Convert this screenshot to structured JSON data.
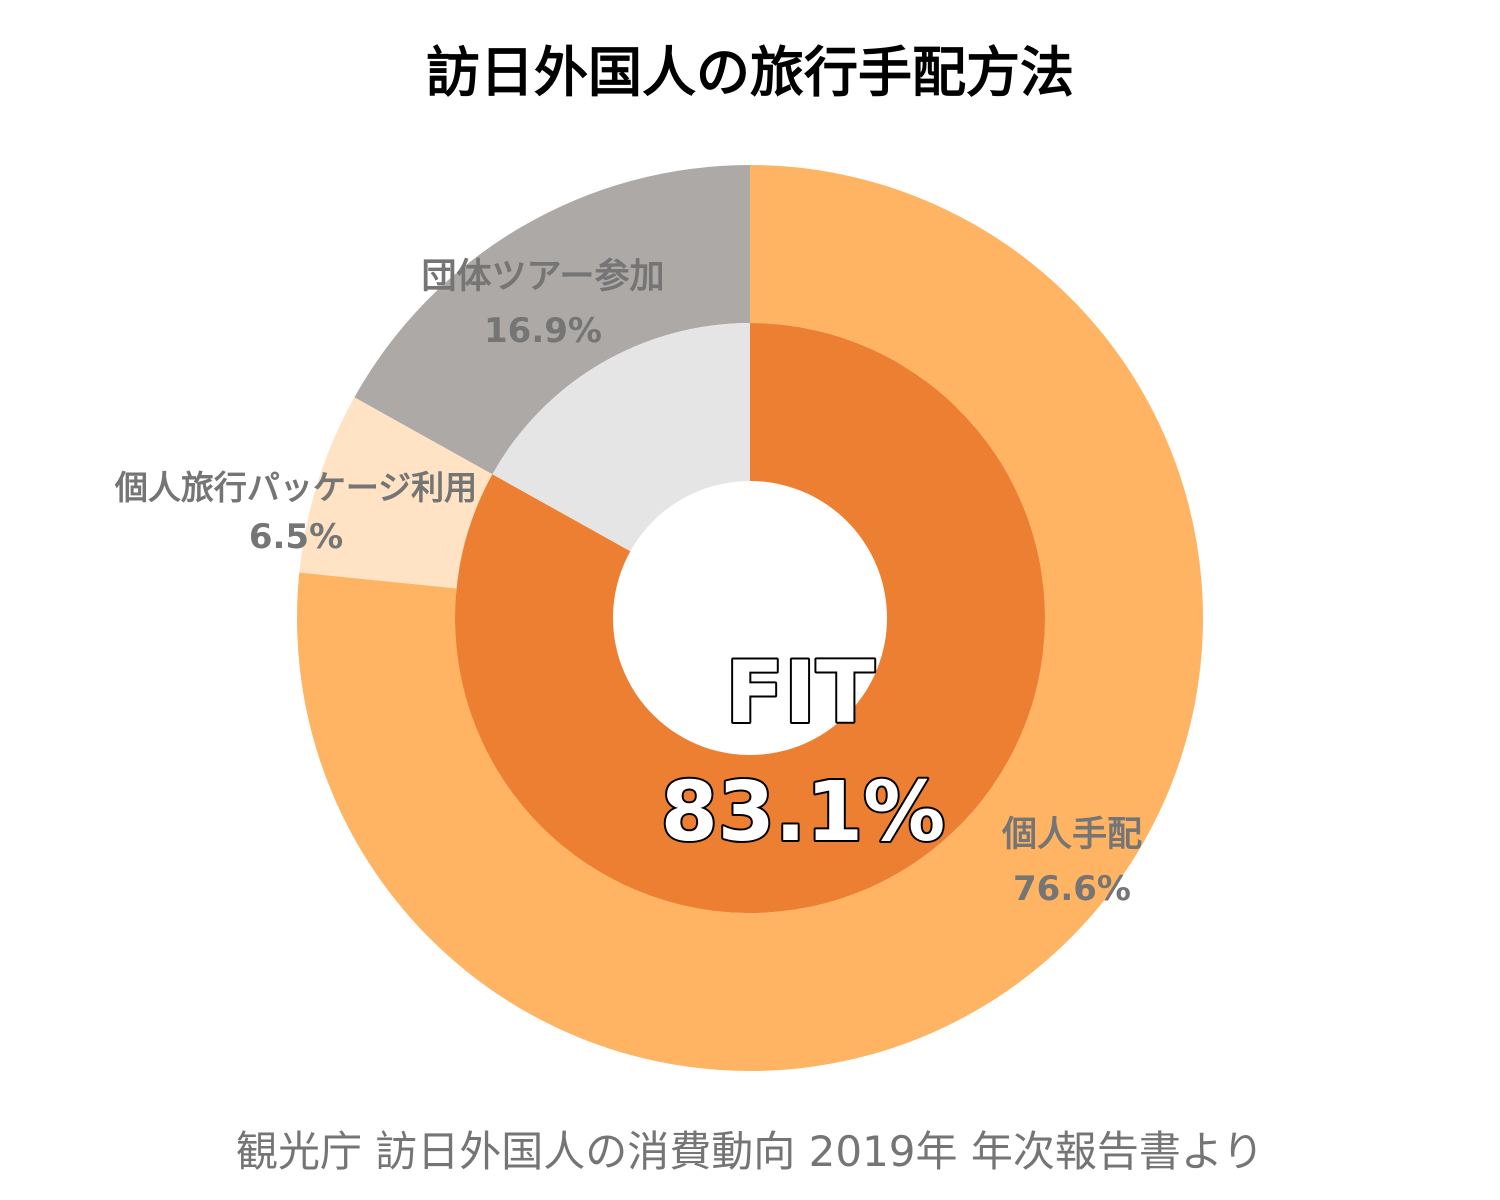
{
  "title": "訪日外国人の旅行手配方法",
  "source": "観光庁 訪日外国人の消費動向 2019年 年次報告書より",
  "chart_data": {
    "type": "pie",
    "variant": "nested-donut",
    "center_label": {
      "text": "FIT",
      "value": "83.1%"
    },
    "outer_ring": [
      {
        "label": "個人手配",
        "value": 76.6,
        "value_label": "76.6%",
        "color": "#FFB463"
      },
      {
        "label": "個人旅行パッケージ利用",
        "value": 6.5,
        "value_label": "6.5%",
        "color": "#FFE3C4"
      },
      {
        "label": "団体ツアー参加",
        "value": 16.9,
        "value_label": "16.9%",
        "color": "#ADA9A7"
      }
    ],
    "inner_ring": [
      {
        "group": "FIT",
        "value": 83.1,
        "color": "#ED7F32"
      },
      {
        "group": "団体ツアー参加",
        "value": 16.9,
        "color": "#E5E5E5"
      }
    ],
    "label_color": "#757575"
  }
}
